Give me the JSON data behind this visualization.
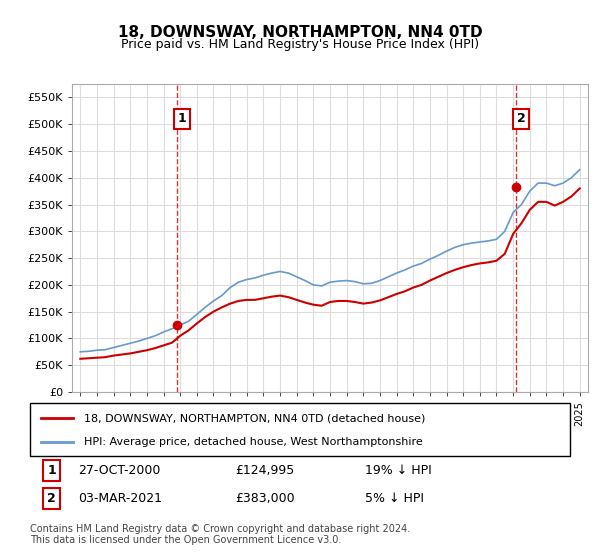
{
  "title": "18, DOWNSWAY, NORTHAMPTON, NN4 0TD",
  "subtitle": "Price paid vs. HM Land Registry's House Price Index (HPI)",
  "legend_line1": "18, DOWNSWAY, NORTHAMPTON, NN4 0TD (detached house)",
  "legend_line2": "HPI: Average price, detached house, West Northamptonshire",
  "footer": "Contains HM Land Registry data © Crown copyright and database right 2024.\nThis data is licensed under the Open Government Licence v3.0.",
  "marker1": {
    "label": "1",
    "date": "27-OCT-2000",
    "price": "£124,995",
    "note": "19% ↓ HPI"
  },
  "marker2": {
    "label": "2",
    "date": "03-MAR-2021",
    "price": "£383,000",
    "note": "5% ↓ HPI"
  },
  "hpi_color": "#6699cc",
  "price_color": "#cc0000",
  "marker_color": "#cc0000",
  "vline_color": "#cc0000",
  "background_color": "#ffffff",
  "grid_color": "#dddddd",
  "ylim": [
    0,
    575000
  ],
  "yticks": [
    0,
    50000,
    100000,
    150000,
    200000,
    250000,
    300000,
    350000,
    400000,
    450000,
    500000,
    550000
  ],
  "xlim_start": 1994.5,
  "xlim_end": 2025.5,
  "marker1_x": 2000.82,
  "marker2_x": 2021.17,
  "marker1_y": 124995,
  "marker2_y": 383000,
  "hpi_years": [
    1995,
    1995.5,
    1996,
    1996.5,
    1997,
    1997.5,
    1998,
    1998.5,
    1999,
    1999.5,
    2000,
    2000.5,
    2001,
    2001.5,
    2002,
    2002.5,
    2003,
    2003.5,
    2004,
    2004.5,
    2005,
    2005.5,
    2006,
    2006.5,
    2007,
    2007.5,
    2008,
    2008.5,
    2009,
    2009.5,
    2010,
    2010.5,
    2011,
    2011.5,
    2012,
    2012.5,
    2013,
    2013.5,
    2014,
    2014.5,
    2015,
    2015.5,
    2016,
    2016.5,
    2017,
    2017.5,
    2018,
    2018.5,
    2019,
    2019.5,
    2020,
    2020.5,
    2021,
    2021.5,
    2022,
    2022.5,
    2023,
    2023.5,
    2024,
    2024.5,
    2025
  ],
  "hpi_values": [
    75000,
    76000,
    78000,
    79000,
    83000,
    87000,
    91000,
    95000,
    100000,
    105000,
    112000,
    118000,
    125000,
    132000,
    145000,
    158000,
    170000,
    180000,
    195000,
    205000,
    210000,
    213000,
    218000,
    222000,
    225000,
    222000,
    215000,
    208000,
    200000,
    198000,
    205000,
    207000,
    208000,
    206000,
    202000,
    203000,
    208000,
    215000,
    222000,
    228000,
    235000,
    240000,
    248000,
    255000,
    263000,
    270000,
    275000,
    278000,
    280000,
    282000,
    285000,
    300000,
    335000,
    350000,
    375000,
    390000,
    390000,
    385000,
    390000,
    400000,
    415000
  ],
  "price_years": [
    1995,
    1995.5,
    1996,
    1996.5,
    1997,
    1997.5,
    1998,
    1998.5,
    1999,
    1999.5,
    2000,
    2000.5,
    2001,
    2001.5,
    2002,
    2002.5,
    2003,
    2003.5,
    2004,
    2004.5,
    2005,
    2005.5,
    2006,
    2006.5,
    2007,
    2007.5,
    2008,
    2008.5,
    2009,
    2009.5,
    2010,
    2010.5,
    2011,
    2011.5,
    2012,
    2012.5,
    2013,
    2013.5,
    2014,
    2014.5,
    2015,
    2015.5,
    2016,
    2016.5,
    2017,
    2017.5,
    2018,
    2018.5,
    2019,
    2019.5,
    2020,
    2020.5,
    2021,
    2021.5,
    2022,
    2022.5,
    2023,
    2023.5,
    2024,
    2024.5,
    2025
  ],
  "price_values": [
    62000,
    63000,
    64000,
    65000,
    68000,
    70000,
    72000,
    75000,
    78000,
    82000,
    87000,
    92000,
    105000,
    115000,
    128000,
    140000,
    150000,
    158000,
    165000,
    170000,
    172000,
    172000,
    175000,
    178000,
    180000,
    177000,
    172000,
    167000,
    163000,
    161000,
    168000,
    170000,
    170000,
    168000,
    165000,
    167000,
    171000,
    177000,
    183000,
    188000,
    195000,
    200000,
    208000,
    215000,
    222000,
    228000,
    233000,
    237000,
    240000,
    242000,
    245000,
    258000,
    295000,
    315000,
    340000,
    355000,
    355000,
    348000,
    355000,
    365000,
    380000
  ]
}
